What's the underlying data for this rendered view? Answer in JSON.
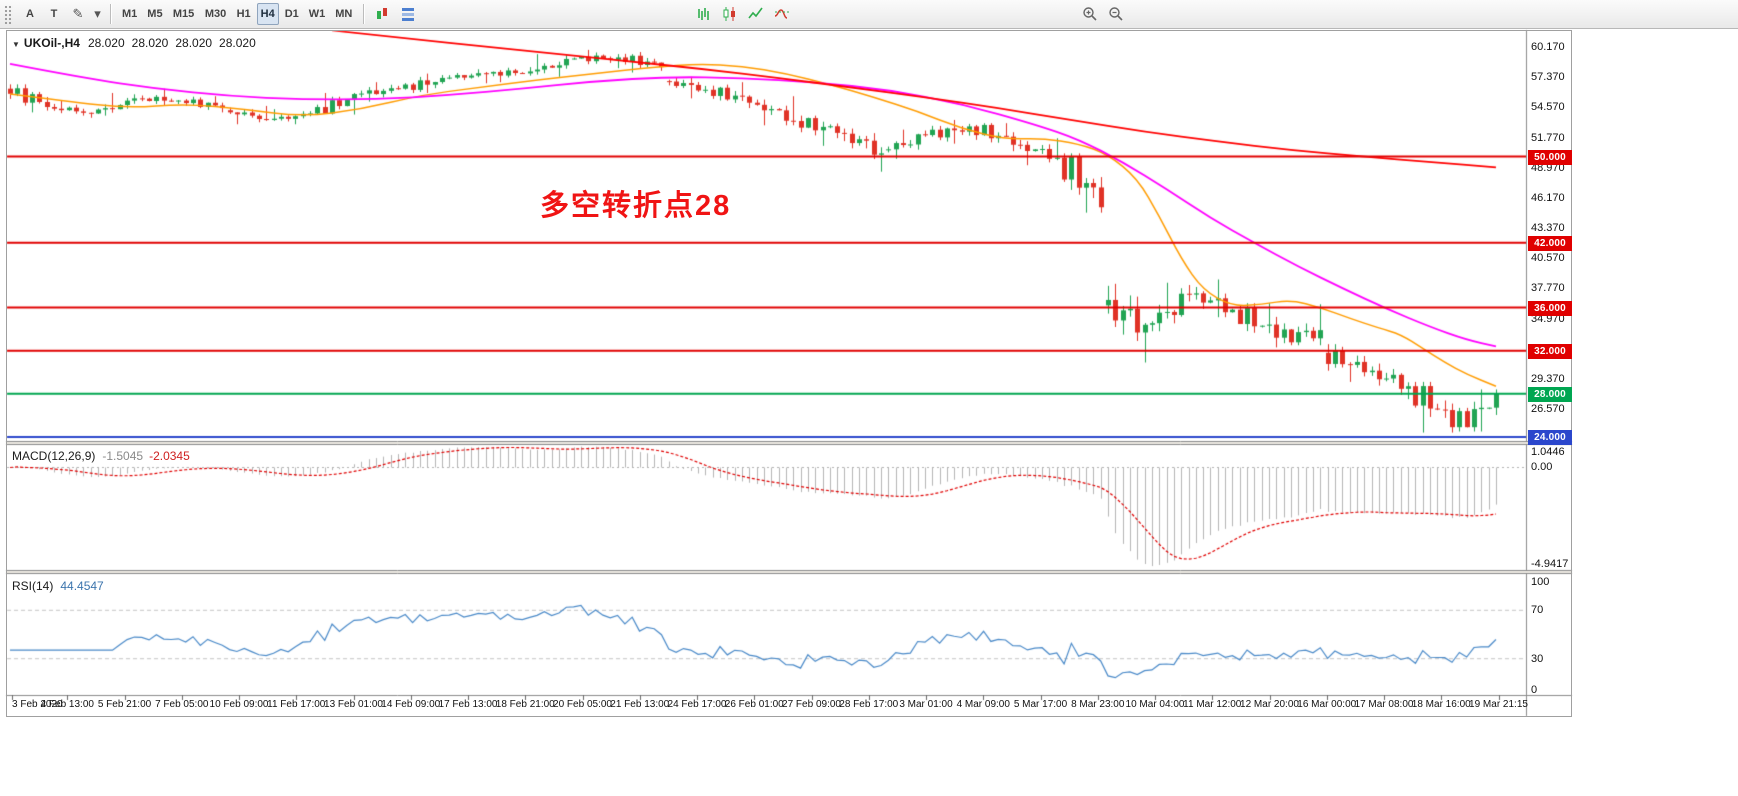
{
  "toolbar": {
    "tools": {
      "arrow_label": "A",
      "text_label": "T",
      "draw_glyph": "✎",
      "dropdown_glyph": "▾"
    },
    "timeframes": [
      {
        "label": "M1",
        "active": false
      },
      {
        "label": "M5",
        "active": false
      },
      {
        "label": "M15",
        "active": false
      },
      {
        "label": "M30",
        "active": false
      },
      {
        "label": "H1",
        "active": false
      },
      {
        "label": "H4",
        "active": true
      },
      {
        "label": "D1",
        "active": false
      },
      {
        "label": "W1",
        "active": false
      },
      {
        "label": "MN",
        "active": false
      }
    ]
  },
  "chart": {
    "symbol_header": {
      "dropdown_glyph": "▼",
      "symbol": "UKOil-,H4",
      "open": "28.020",
      "high": "28.020",
      "low": "28.020",
      "close": "28.020"
    },
    "annotation": {
      "text": "多空转折点28",
      "color": "#f01414"
    },
    "price_ticks": [
      "60.170",
      "57.370",
      "54.570",
      "51.770",
      "48.970",
      "46.170",
      "43.370",
      "40.570",
      "37.770",
      "34.970",
      "29.370",
      "26.570"
    ],
    "hlines": [
      {
        "value": 50.0,
        "label": "50.000",
        "color": "#e00000"
      },
      {
        "value": 42.0,
        "label": "42.000",
        "color": "#e00000"
      },
      {
        "value": 36.0,
        "label": "36.000",
        "color": "#e00000"
      },
      {
        "value": 32.0,
        "label": "32.000",
        "color": "#e00000"
      },
      {
        "value": 28.0,
        "label": "28.000",
        "color": "#00a651"
      },
      {
        "value": 24.0,
        "label": "24.000",
        "color": "#2b47cc"
      }
    ],
    "time_labels": [
      "3 Feb 2020",
      "4 Feb 13:00",
      "5 Feb 21:00",
      "7 Feb 05:00",
      "10 Feb 09:00",
      "11 Feb 17:00",
      "13 Feb 01:00",
      "14 Feb 09:00",
      "17 Feb 13:00",
      "18 Feb 21:00",
      "20 Feb 05:00",
      "21 Feb 13:00",
      "24 Feb 17:00",
      "26 Feb 01:00",
      "27 Feb 09:00",
      "28 Feb 17:00",
      "3 Mar 01:00",
      "4 Mar 09:00",
      "5 Mar 17:00",
      "8 Mar 23:00",
      "10 Mar 04:00",
      "11 Mar 12:00",
      "12 Mar 20:00",
      "16 Mar 00:00",
      "17 Mar 08:00",
      "18 Mar 16:00",
      "19 Mar 21:15"
    ],
    "colors": {
      "bull": "#21a453",
      "bear": "#e03226",
      "ma_fast": "#ff9c00",
      "ma_mid": "#ff00ff",
      "ma_slow": "#ff0000",
      "macd_hist": "#b4b4b4",
      "macd_signal": "#e00000",
      "rsi_line": "#4989c8"
    }
  },
  "macd": {
    "title": "MACD(12,26,9)",
    "value_main": "-1.5045",
    "value_signal": "-2.0345",
    "scale_top": "1.0446",
    "scale_zero": "0.00",
    "scale_bottom": "-4.9417"
  },
  "rsi": {
    "title": "RSI(14)",
    "value": "44.4547",
    "scale": [
      "100",
      "70",
      "30",
      "0"
    ]
  },
  "chart_data": {
    "type": "candlestick",
    "symbol": "UKOil-",
    "timeframe": "H4",
    "last_quote": 28.02,
    "price_range_visible": [
      23.6,
      61.7
    ],
    "daily_ohlc": {
      "dates": [
        "2020-02-03",
        "2020-02-04",
        "2020-02-05",
        "2020-02-06",
        "2020-02-07",
        "2020-02-10",
        "2020-02-11",
        "2020-02-12",
        "2020-02-13",
        "2020-02-14",
        "2020-02-17",
        "2020-02-18",
        "2020-02-19",
        "2020-02-20",
        "2020-02-21",
        "2020-02-24",
        "2020-02-25",
        "2020-02-26",
        "2020-02-27",
        "2020-02-28",
        "2020-03-02",
        "2020-03-03",
        "2020-03-04",
        "2020-03-05",
        "2020-03-06",
        "2020-03-09",
        "2020-03-10",
        "2020-03-11",
        "2020-03-12",
        "2020-03-13",
        "2020-03-16",
        "2020-03-17",
        "2020-03-18",
        "2020-03-19"
      ],
      "ohlc": [
        [
          56.3,
          56.7,
          54.1,
          54.6
        ],
        [
          54.6,
          55.2,
          53.6,
          54.0
        ],
        [
          54.0,
          55.9,
          53.8,
          55.4
        ],
        [
          55.4,
          56.3,
          54.7,
          55.2
        ],
        [
          55.2,
          55.6,
          54.1,
          54.5
        ],
        [
          54.3,
          54.7,
          53.0,
          53.4
        ],
        [
          53.4,
          54.4,
          53.0,
          54.0
        ],
        [
          54.0,
          55.9,
          53.9,
          55.8
        ],
        [
          55.8,
          56.9,
          55.1,
          56.3
        ],
        [
          56.3,
          57.7,
          55.9,
          57.3
        ],
        [
          57.3,
          58.1,
          56.8,
          57.7
        ],
        [
          57.7,
          58.3,
          56.9,
          57.9
        ],
        [
          57.9,
          59.5,
          57.4,
          59.1
        ],
        [
          59.1,
          59.9,
          58.2,
          59.2
        ],
        [
          59.2,
          59.7,
          57.8,
          58.3
        ],
        [
          57.0,
          57.4,
          55.4,
          56.2
        ],
        [
          56.2,
          56.9,
          54.5,
          55.0
        ],
        [
          55.0,
          55.6,
          52.9,
          53.3
        ],
        [
          53.3,
          53.8,
          51.0,
          52.2
        ],
        [
          52.2,
          52.6,
          48.6,
          50.3
        ],
        [
          50.6,
          52.5,
          49.8,
          52.0
        ],
        [
          52.0,
          53.4,
          51.2,
          52.8
        ],
        [
          52.8,
          53.1,
          50.5,
          51.1
        ],
        [
          51.1,
          51.7,
          49.2,
          49.9
        ],
        [
          49.9,
          50.3,
          44.8,
          45.3
        ],
        [
          36.2,
          38.2,
          30.9,
          34.4
        ],
        [
          34.4,
          38.3,
          33.8,
          37.2
        ],
        [
          37.2,
          38.6,
          35.1,
          35.8
        ],
        [
          35.8,
          36.4,
          32.3,
          33.2
        ],
        [
          33.2,
          36.3,
          32.5,
          33.9
        ],
        [
          31.8,
          32.6,
          29.1,
          30.0
        ],
        [
          30.0,
          30.8,
          27.5,
          28.7
        ],
        [
          28.7,
          29.1,
          24.4,
          24.9
        ],
        [
          24.9,
          28.4,
          24.5,
          28.02
        ]
      ]
    },
    "moving_averages": [
      {
        "name": "ma-fast",
        "color": "#ff9c00",
        "width": 1.5,
        "anchors": [
          [
            0,
            55.8
          ],
          [
            8,
            55.1
          ],
          [
            16,
            54.5
          ],
          [
            24,
            54.9
          ],
          [
            32,
            54.4
          ],
          [
            40,
            53.7
          ],
          [
            48,
            54.4
          ],
          [
            56,
            55.7
          ],
          [
            64,
            56.4
          ],
          [
            72,
            57.1
          ],
          [
            80,
            57.7
          ],
          [
            88,
            58.3
          ],
          [
            94,
            58.6
          ],
          [
            100,
            58.4
          ],
          [
            106,
            57.7
          ],
          [
            112,
            56.7
          ],
          [
            118,
            55.5
          ],
          [
            124,
            54.2
          ],
          [
            130,
            52.6
          ],
          [
            136,
            51.6
          ],
          [
            141,
            51.7
          ],
          [
            146,
            51.2
          ],
          [
            150,
            50.2
          ],
          [
            154,
            48.0
          ],
          [
            157,
            44.5
          ],
          [
            160,
            40.5
          ],
          [
            163,
            37.6
          ],
          [
            167,
            36.1
          ],
          [
            171,
            36.3
          ],
          [
            175,
            36.7
          ],
          [
            179,
            36.0
          ],
          [
            183,
            35.0
          ],
          [
            187,
            34.1
          ],
          [
            190,
            33.5
          ],
          [
            193,
            32.2
          ],
          [
            196,
            30.9
          ],
          [
            199,
            29.8
          ],
          [
            203,
            28.7
          ]
        ]
      },
      {
        "name": "ma-mid",
        "color": "#ff00ff",
        "width": 1.8,
        "anchors": [
          [
            0,
            58.6
          ],
          [
            10,
            57.3
          ],
          [
            20,
            56.3
          ],
          [
            30,
            55.6
          ],
          [
            40,
            55.3
          ],
          [
            50,
            55.3
          ],
          [
            60,
            55.7
          ],
          [
            70,
            56.3
          ],
          [
            80,
            57.0
          ],
          [
            90,
            57.4
          ],
          [
            100,
            57.3
          ],
          [
            110,
            56.9
          ],
          [
            120,
            56.2
          ],
          [
            130,
            54.9
          ],
          [
            140,
            53.0
          ],
          [
            146,
            51.6
          ],
          [
            152,
            49.5
          ],
          [
            158,
            47.0
          ],
          [
            164,
            44.3
          ],
          [
            170,
            42.0
          ],
          [
            176,
            39.8
          ],
          [
            182,
            37.8
          ],
          [
            188,
            35.9
          ],
          [
            194,
            34.2
          ],
          [
            199,
            33.0
          ],
          [
            203,
            32.4
          ]
        ]
      },
      {
        "name": "ma-slow",
        "color": "#ff0000",
        "width": 1.8,
        "anchors": [
          [
            44,
            61.7
          ],
          [
            55,
            60.9
          ],
          [
            65,
            60.2
          ],
          [
            75,
            59.5
          ],
          [
            85,
            58.8
          ],
          [
            95,
            58.1
          ],
          [
            105,
            57.3
          ],
          [
            115,
            56.4
          ],
          [
            125,
            55.5
          ],
          [
            135,
            54.5
          ],
          [
            145,
            53.4
          ],
          [
            155,
            52.3
          ],
          [
            165,
            51.4
          ],
          [
            175,
            50.6
          ],
          [
            185,
            50.0
          ],
          [
            194,
            49.5
          ],
          [
            203,
            49.0
          ]
        ]
      }
    ],
    "horizontal_levels": [
      50,
      42,
      36,
      32,
      28,
      24
    ],
    "indicators": [
      {
        "name": "MACD",
        "params": [
          12,
          26,
          9
        ],
        "current": [
          -1.5045,
          -2.0345
        ],
        "pane_range": [
          -4.9417,
          1.0446
        ]
      },
      {
        "name": "RSI",
        "params": [
          14
        ],
        "current": 44.4547,
        "pane_range": [
          0,
          100
        ],
        "levels": [
          70,
          30
        ]
      }
    ]
  }
}
